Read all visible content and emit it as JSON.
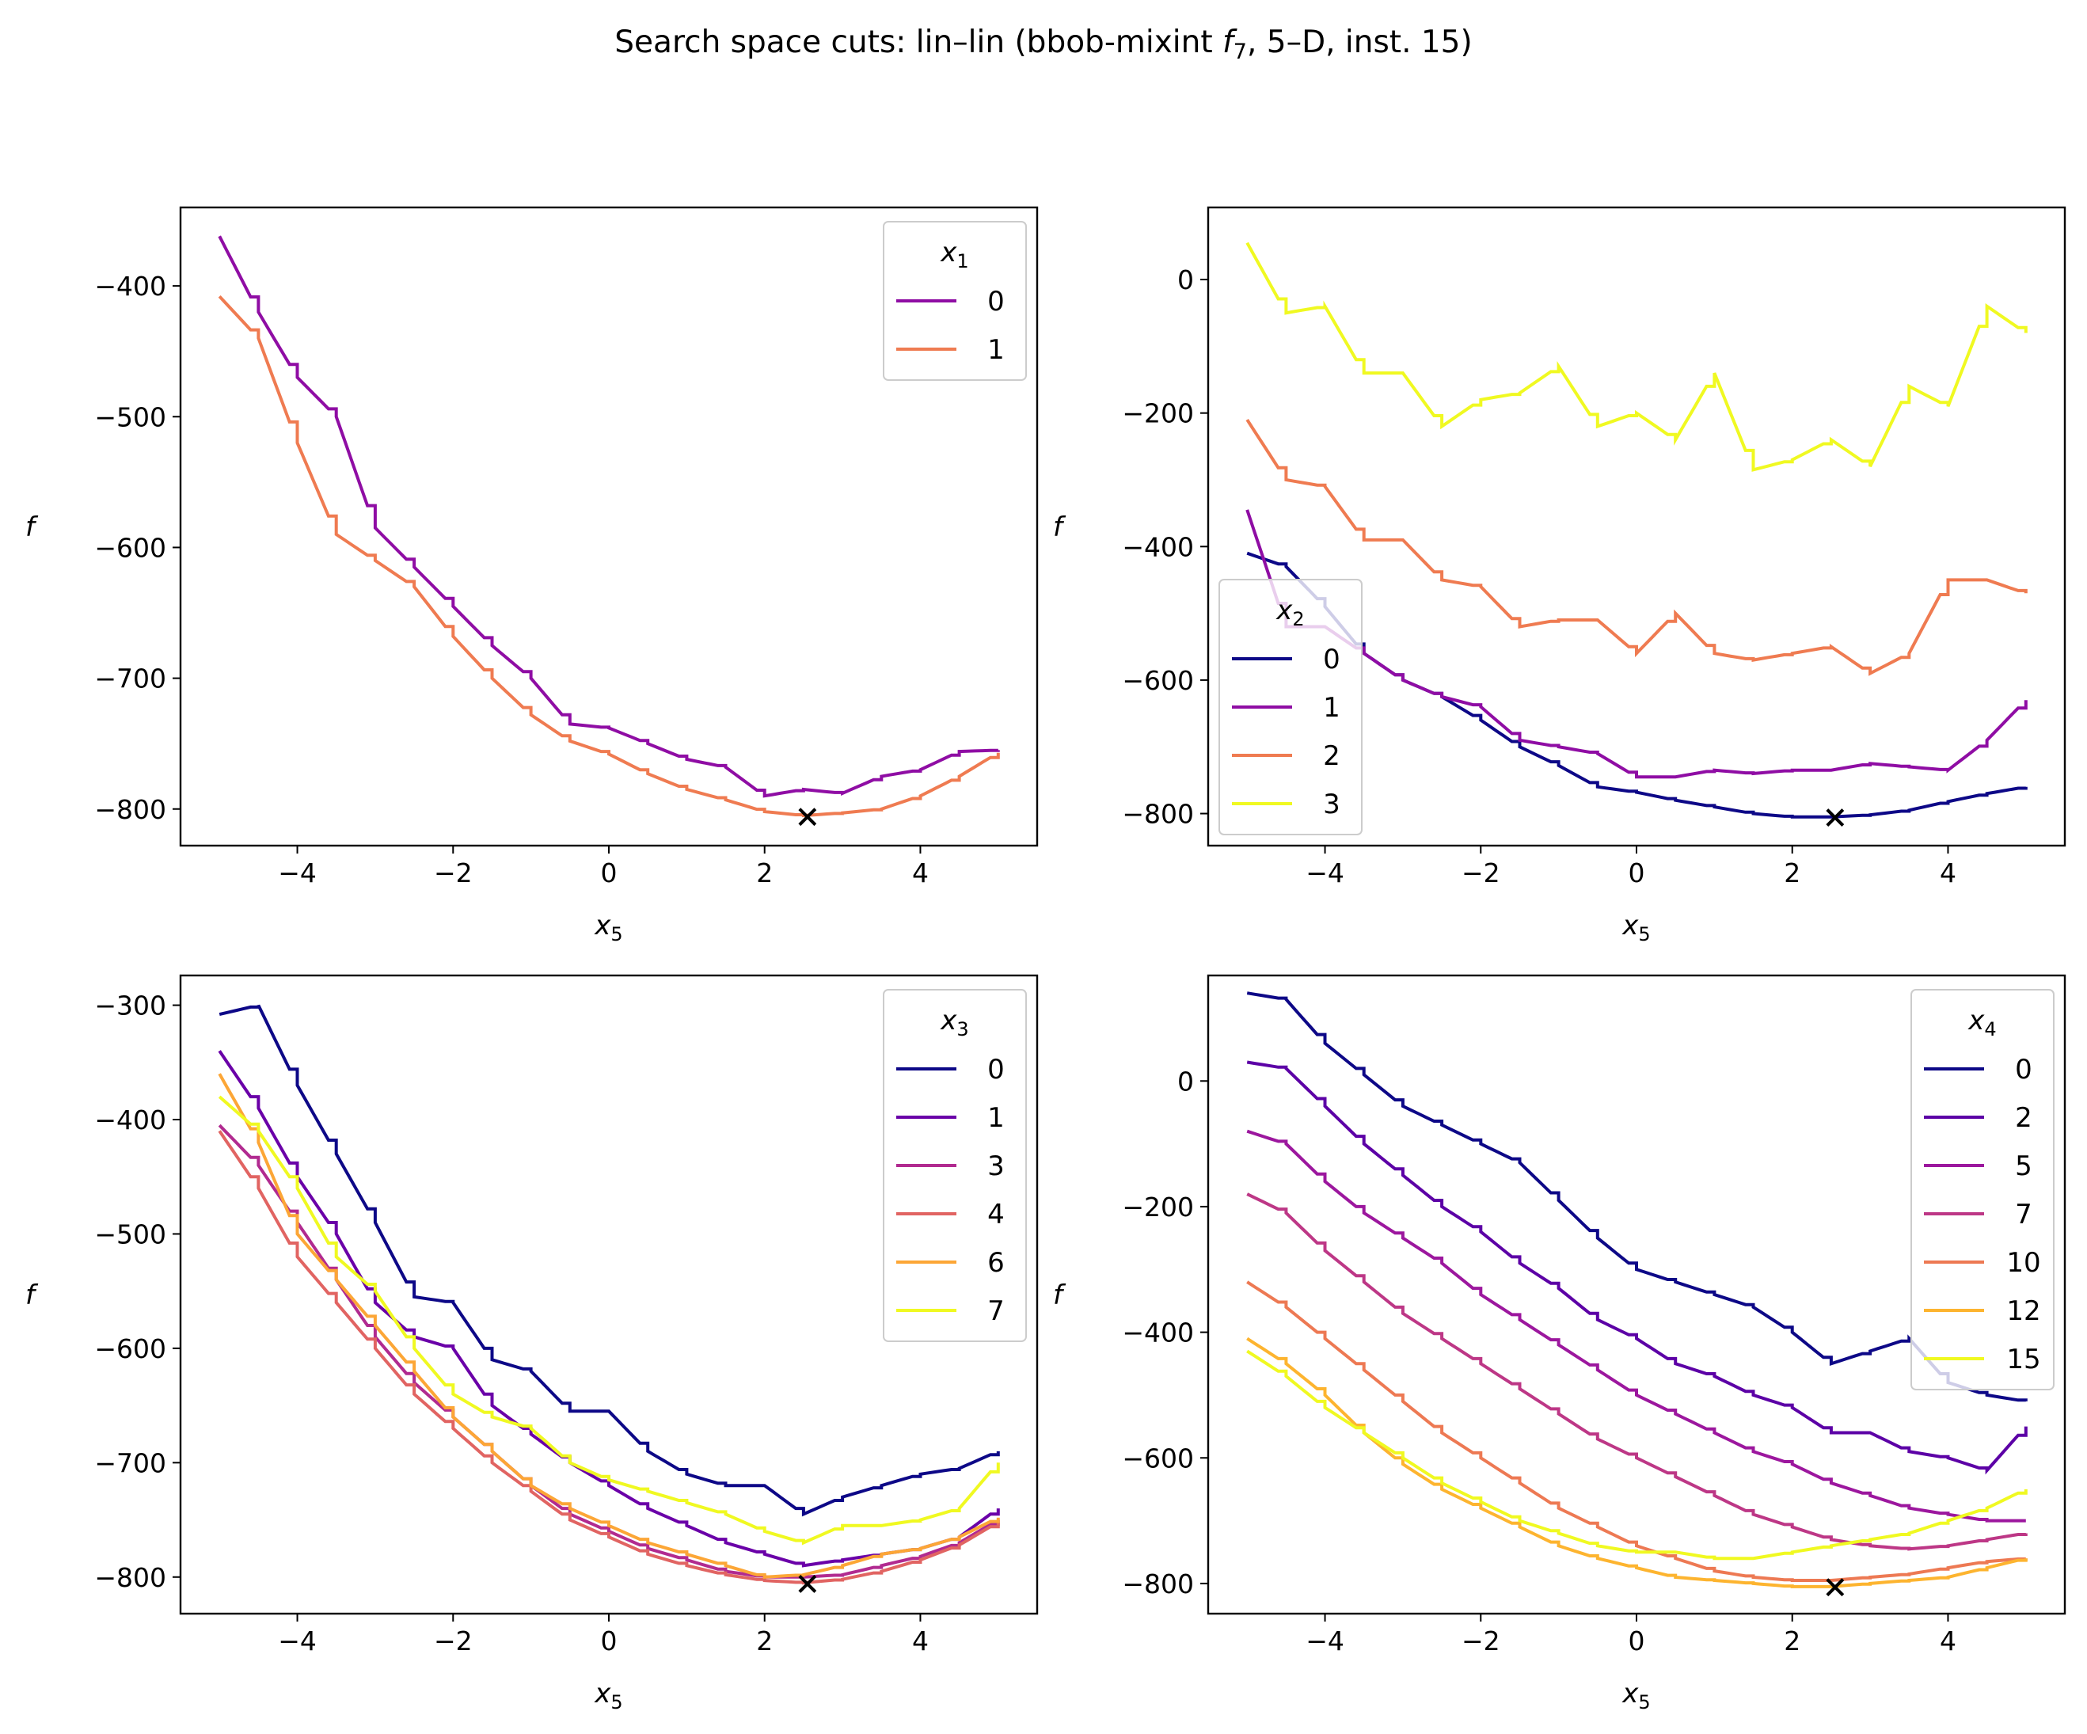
{
  "figure": {
    "title_prefix": "Search space cuts: lin–lin (bbob-mixint ",
    "title_f": "f",
    "title_sub": "7",
    "title_suffix": ", 5–D, inst. 15)"
  },
  "chart_data": [
    {
      "type": "line",
      "xlabel": "x",
      "xlabel_sub": "5",
      "ylabel": "f",
      "xlim": [
        -5.5,
        5.5
      ],
      "ylim": [
        -828,
        -340
      ],
      "xticks": [
        -4,
        -2,
        0,
        2,
        4
      ],
      "yticks": [
        -800,
        -700,
        -600,
        -500,
        -400
      ],
      "legend": {
        "title": "x",
        "title_sub": "1",
        "position": "top-right"
      },
      "optimum": {
        "x": 2.55,
        "y": -806
      },
      "series": [
        {
          "name": "0",
          "color": "#8f0da4",
          "x": [
            -5,
            -4.5,
            -4,
            -3.5,
            -3,
            -2.5,
            -2,
            -1.5,
            -1,
            -0.5,
            0,
            0.5,
            1,
            1.5,
            2,
            2.5,
            3,
            3.5,
            4,
            4.5,
            5
          ],
          "y": [
            -362,
            -420,
            -470,
            -500,
            -585,
            -615,
            -645,
            -675,
            -700,
            -735,
            -738,
            -750,
            -762,
            -768,
            -790,
            -785,
            -788,
            -775,
            -770,
            -756,
            -755
          ]
        },
        {
          "name": "1",
          "color": "#ef7b51",
          "x": [
            -5,
            -4.5,
            -4,
            -3.5,
            -3,
            -2.5,
            -2,
            -1.5,
            -1,
            -0.5,
            0,
            0.5,
            1,
            1.5,
            2,
            2.5,
            3,
            3.5,
            4,
            4.5,
            5
          ],
          "y": [
            -408,
            -440,
            -520,
            -590,
            -610,
            -630,
            -668,
            -700,
            -728,
            -748,
            -758,
            -773,
            -785,
            -793,
            -802,
            -805,
            -803,
            -800,
            -790,
            -775,
            -757
          ]
        }
      ]
    },
    {
      "type": "line",
      "xlabel": "x",
      "xlabel_sub": "5",
      "ylabel": "f",
      "xlim": [
        -5.5,
        5.5
      ],
      "ylim": [
        -848,
        108
      ],
      "xticks": [
        -4,
        -2,
        0,
        2,
        4
      ],
      "yticks": [
        -800,
        -600,
        -400,
        -200,
        0
      ],
      "legend": {
        "title": "x",
        "title_sub": "2",
        "position": "center-left"
      },
      "optimum": {
        "x": 2.55,
        "y": -806
      },
      "series": [
        {
          "name": "0",
          "color": "#0d0887",
          "x": [
            -5,
            -4.5,
            -4,
            -3.5,
            -3,
            -2.5,
            -2,
            -1.5,
            -1,
            -0.5,
            0,
            0.5,
            1,
            1.5,
            2,
            2.5,
            3,
            3.5,
            4,
            4.5,
            5
          ],
          "y": [
            -410,
            -430,
            -490,
            -560,
            -600,
            -625,
            -660,
            -700,
            -728,
            -760,
            -768,
            -780,
            -790,
            -800,
            -805,
            -805,
            -802,
            -795,
            -782,
            -770,
            -760
          ]
        },
        {
          "name": "1",
          "color": "#8f0da4",
          "x": [
            -5,
            -4.5,
            -4,
            -3.5,
            -3,
            -2.5,
            -2,
            -1.5,
            -1,
            -0.5,
            0,
            0.5,
            1,
            1.5,
            2,
            2.5,
            3,
            3.5,
            4,
            4.5,
            5
          ],
          "y": [
            -345,
            -520,
            -520,
            -560,
            -600,
            -625,
            -640,
            -690,
            -700,
            -710,
            -745,
            -745,
            -735,
            -740,
            -735,
            -735,
            -725,
            -730,
            -735,
            -690,
            -630
          ]
        },
        {
          "name": "2",
          "color": "#ef7b51",
          "x": [
            -5,
            -4.5,
            -4,
            -3.5,
            -3,
            -2.5,
            -2,
            -1.5,
            -1,
            -0.5,
            0,
            0.5,
            1,
            1.5,
            2,
            2.5,
            3,
            3.5,
            4,
            4.5,
            5
          ],
          "y": [
            -210,
            -300,
            -310,
            -390,
            -390,
            -450,
            -460,
            -520,
            -510,
            -510,
            -560,
            -500,
            -560,
            -570,
            -560,
            -550,
            -590,
            -560,
            -450,
            -450,
            -470
          ]
        },
        {
          "name": "3",
          "color": "#f0f921",
          "x": [
            -5,
            -4.5,
            -4,
            -3.5,
            -3,
            -2.5,
            -2,
            -1.5,
            -1,
            -0.5,
            0,
            0.5,
            1,
            1.5,
            2,
            2.5,
            3,
            3.5,
            4,
            4.5,
            5
          ],
          "y": [
            55,
            -50,
            -40,
            -140,
            -140,
            -220,
            -180,
            -170,
            -130,
            -220,
            -200,
            -240,
            -140,
            -285,
            -270,
            -240,
            -280,
            -160,
            -190,
            -40,
            -80
          ]
        }
      ]
    },
    {
      "type": "line",
      "xlabel": "x",
      "xlabel_sub": "5",
      "ylabel": "f",
      "xlim": [
        -5.5,
        5.5
      ],
      "ylim": [
        -832,
        -274
      ],
      "xticks": [
        -4,
        -2,
        0,
        2,
        4
      ],
      "yticks": [
        -800,
        -700,
        -600,
        -500,
        -400,
        -300
      ],
      "legend": {
        "title": "x",
        "title_sub": "3",
        "position": "top-right"
      },
      "optimum": {
        "x": 2.55,
        "y": -806
      },
      "series": [
        {
          "name": "0",
          "color": "#0d0887",
          "x": [
            -5,
            -4.5,
            -4,
            -3.5,
            -3,
            -2.5,
            -2,
            -1.5,
            -1,
            -0.5,
            0,
            0.5,
            1,
            1.5,
            2,
            2.5,
            3,
            3.5,
            4,
            4.5,
            5
          ],
          "y": [
            -308,
            -300,
            -370,
            -430,
            -490,
            -555,
            -560,
            -610,
            -620,
            -655,
            -655,
            -690,
            -710,
            -720,
            -720,
            -745,
            -730,
            -720,
            -710,
            -705,
            -690
          ]
        },
        {
          "name": "1",
          "color": "#6a00a8",
          "x": [
            -5,
            -4.5,
            -4,
            -3.5,
            -3,
            -2.5,
            -2,
            -1.5,
            -1,
            -0.5,
            0,
            0.5,
            1,
            1.5,
            2,
            2.5,
            3,
            3.5,
            4,
            4.5,
            5
          ],
          "y": [
            -340,
            -390,
            -450,
            -500,
            -560,
            -590,
            -600,
            -650,
            -675,
            -700,
            -720,
            -740,
            -755,
            -770,
            -780,
            -790,
            -785,
            -780,
            -775,
            -765,
            -740
          ]
        },
        {
          "name": "3",
          "color": "#b12a90",
          "x": [
            -5,
            -4.5,
            -4,
            -3.5,
            -3,
            -2.5,
            -2,
            -1.5,
            -1,
            -0.5,
            0,
            0.5,
            1,
            1.5,
            2,
            2.5,
            3,
            3.5,
            4,
            4.5,
            5
          ],
          "y": [
            -405,
            -440,
            -490,
            -540,
            -590,
            -630,
            -660,
            -690,
            -720,
            -745,
            -760,
            -775,
            -785,
            -795,
            -800,
            -800,
            -798,
            -790,
            -782,
            -770,
            -750
          ]
        },
        {
          "name": "4",
          "color": "#e16462",
          "x": [
            -5,
            -4.5,
            -4,
            -3.5,
            -3,
            -2.5,
            -2,
            -1.5,
            -1,
            -0.5,
            0,
            0.5,
            1,
            1.5,
            2,
            2.5,
            3,
            3.5,
            4,
            4.5,
            5
          ],
          "y": [
            -410,
            -460,
            -520,
            -560,
            -600,
            -640,
            -670,
            -700,
            -725,
            -750,
            -765,
            -780,
            -790,
            -798,
            -803,
            -805,
            -802,
            -795,
            -785,
            -772,
            -752
          ]
        },
        {
          "name": "6",
          "color": "#fca636",
          "x": [
            -5,
            -4.5,
            -4,
            -3.5,
            -3,
            -2.5,
            -2,
            -1.5,
            -1,
            -0.5,
            0,
            0.5,
            1,
            1.5,
            2,
            2.5,
            3,
            3.5,
            4,
            4.5,
            5
          ],
          "y": [
            -360,
            -420,
            -500,
            -540,
            -580,
            -620,
            -660,
            -690,
            -720,
            -740,
            -755,
            -770,
            -780,
            -790,
            -800,
            -798,
            -790,
            -780,
            -775,
            -765,
            -748
          ]
        },
        {
          "name": "7",
          "color": "#f0f921",
          "x": [
            -5,
            -4.5,
            -4,
            -3.5,
            -3,
            -2.5,
            -2,
            -1.5,
            -1,
            -0.5,
            0,
            0.5,
            1,
            1.5,
            2,
            2.5,
            3,
            3.5,
            4,
            4.5,
            5
          ],
          "y": [
            -380,
            -410,
            -460,
            -520,
            -550,
            -600,
            -640,
            -660,
            -670,
            -700,
            -715,
            -725,
            -735,
            -745,
            -760,
            -770,
            -755,
            -755,
            -750,
            -740,
            -700
          ]
        }
      ]
    },
    {
      "type": "line",
      "xlabel": "x",
      "xlabel_sub": "5",
      "ylabel": "f",
      "xlim": [
        -5.5,
        5.5
      ],
      "ylim": [
        -848,
        168
      ],
      "xticks": [
        -4,
        -2,
        0,
        2,
        4
      ],
      "yticks": [
        -800,
        -600,
        -400,
        -200,
        0
      ],
      "legend": {
        "title": "x",
        "title_sub": "4",
        "position": "top-right"
      },
      "optimum": {
        "x": 2.55,
        "y": -806
      },
      "series": [
        {
          "name": "0",
          "color": "#0d0887",
          "x": [
            -5,
            -4.5,
            -4,
            -3.5,
            -3,
            -2.5,
            -2,
            -1.5,
            -1,
            -0.5,
            0,
            0.5,
            1,
            1.5,
            2,
            2.5,
            3,
            3.5,
            4,
            4.5,
            5
          ],
          "y": [
            140,
            130,
            60,
            10,
            -40,
            -70,
            -100,
            -130,
            -190,
            -250,
            -300,
            -320,
            -340,
            -360,
            -400,
            -450,
            -430,
            -410,
            -480,
            -500,
            -510
          ]
        },
        {
          "name": "2",
          "color": "#5c01a6",
          "x": [
            -5,
            -4.5,
            -4,
            -3.5,
            -3,
            -2.5,
            -2,
            -1.5,
            -1,
            -0.5,
            0,
            0.5,
            1,
            1.5,
            2,
            2.5,
            3,
            3.5,
            4,
            4.5,
            5
          ],
          "y": [
            30,
            20,
            -40,
            -100,
            -150,
            -200,
            -240,
            -290,
            -330,
            -380,
            -410,
            -450,
            -470,
            -500,
            -520,
            -560,
            -560,
            -590,
            -600,
            -620,
            -550
          ]
        },
        {
          "name": "5",
          "color": "#9c179e",
          "x": [
            -5,
            -4.5,
            -4,
            -3.5,
            -3,
            -2.5,
            -2,
            -1.5,
            -1,
            -0.5,
            0,
            0.5,
            1,
            1.5,
            2,
            2.5,
            3,
            3.5,
            4,
            4.5,
            5
          ],
          "y": [
            -80,
            -100,
            -160,
            -210,
            -250,
            -290,
            -340,
            -380,
            -420,
            -460,
            -500,
            -530,
            -560,
            -590,
            -610,
            -640,
            -660,
            -680,
            -690,
            -700,
            -700
          ]
        },
        {
          "name": "7",
          "color": "#bd3786",
          "x": [
            -5,
            -4.5,
            -4,
            -3.5,
            -3,
            -2.5,
            -2,
            -1.5,
            -1,
            -0.5,
            0,
            0.5,
            1,
            1.5,
            2,
            2.5,
            3,
            3.5,
            4,
            4.5,
            5
          ],
          "y": [
            -180,
            -210,
            -270,
            -320,
            -370,
            -410,
            -450,
            -490,
            -530,
            -570,
            -600,
            -630,
            -660,
            -690,
            -710,
            -730,
            -740,
            -745,
            -740,
            -730,
            -720
          ]
        },
        {
          "name": "10",
          "color": "#ed7953",
          "x": [
            -5,
            -4.5,
            -4,
            -3.5,
            -3,
            -2.5,
            -2,
            -1.5,
            -1,
            -0.5,
            0,
            0.5,
            1,
            1.5,
            2,
            2.5,
            3,
            3.5,
            4,
            4.5,
            5
          ],
          "y": [
            -320,
            -360,
            -410,
            -460,
            -510,
            -560,
            -600,
            -640,
            -680,
            -710,
            -740,
            -760,
            -780,
            -790,
            -795,
            -795,
            -790,
            -785,
            -775,
            -765,
            -760
          ]
        },
        {
          "name": "12",
          "color": "#fdb42f",
          "x": [
            -5,
            -4.5,
            -4,
            -3.5,
            -3,
            -2.5,
            -2,
            -1.5,
            -1,
            -0.5,
            0,
            0.5,
            1,
            1.5,
            2,
            2.5,
            3,
            3.5,
            4,
            4.5,
            5
          ],
          "y": [
            -410,
            -450,
            -500,
            -560,
            -610,
            -650,
            -680,
            -710,
            -740,
            -760,
            -775,
            -790,
            -795,
            -800,
            -805,
            -805,
            -800,
            -795,
            -790,
            -775,
            -760
          ]
        },
        {
          "name": "15",
          "color": "#f0f921",
          "x": [
            -5,
            -4.5,
            -4,
            -3.5,
            -3,
            -2.5,
            -2,
            -1.5,
            -1,
            -0.5,
            0,
            0.5,
            1,
            1.5,
            2,
            2.5,
            3,
            3.5,
            4,
            4.5,
            5
          ],
          "y": [
            -430,
            -470,
            -520,
            -560,
            -600,
            -640,
            -670,
            -700,
            -720,
            -740,
            -750,
            -750,
            -760,
            -760,
            -750,
            -740,
            -730,
            -720,
            -700,
            -680,
            -650
          ]
        }
      ]
    }
  ]
}
